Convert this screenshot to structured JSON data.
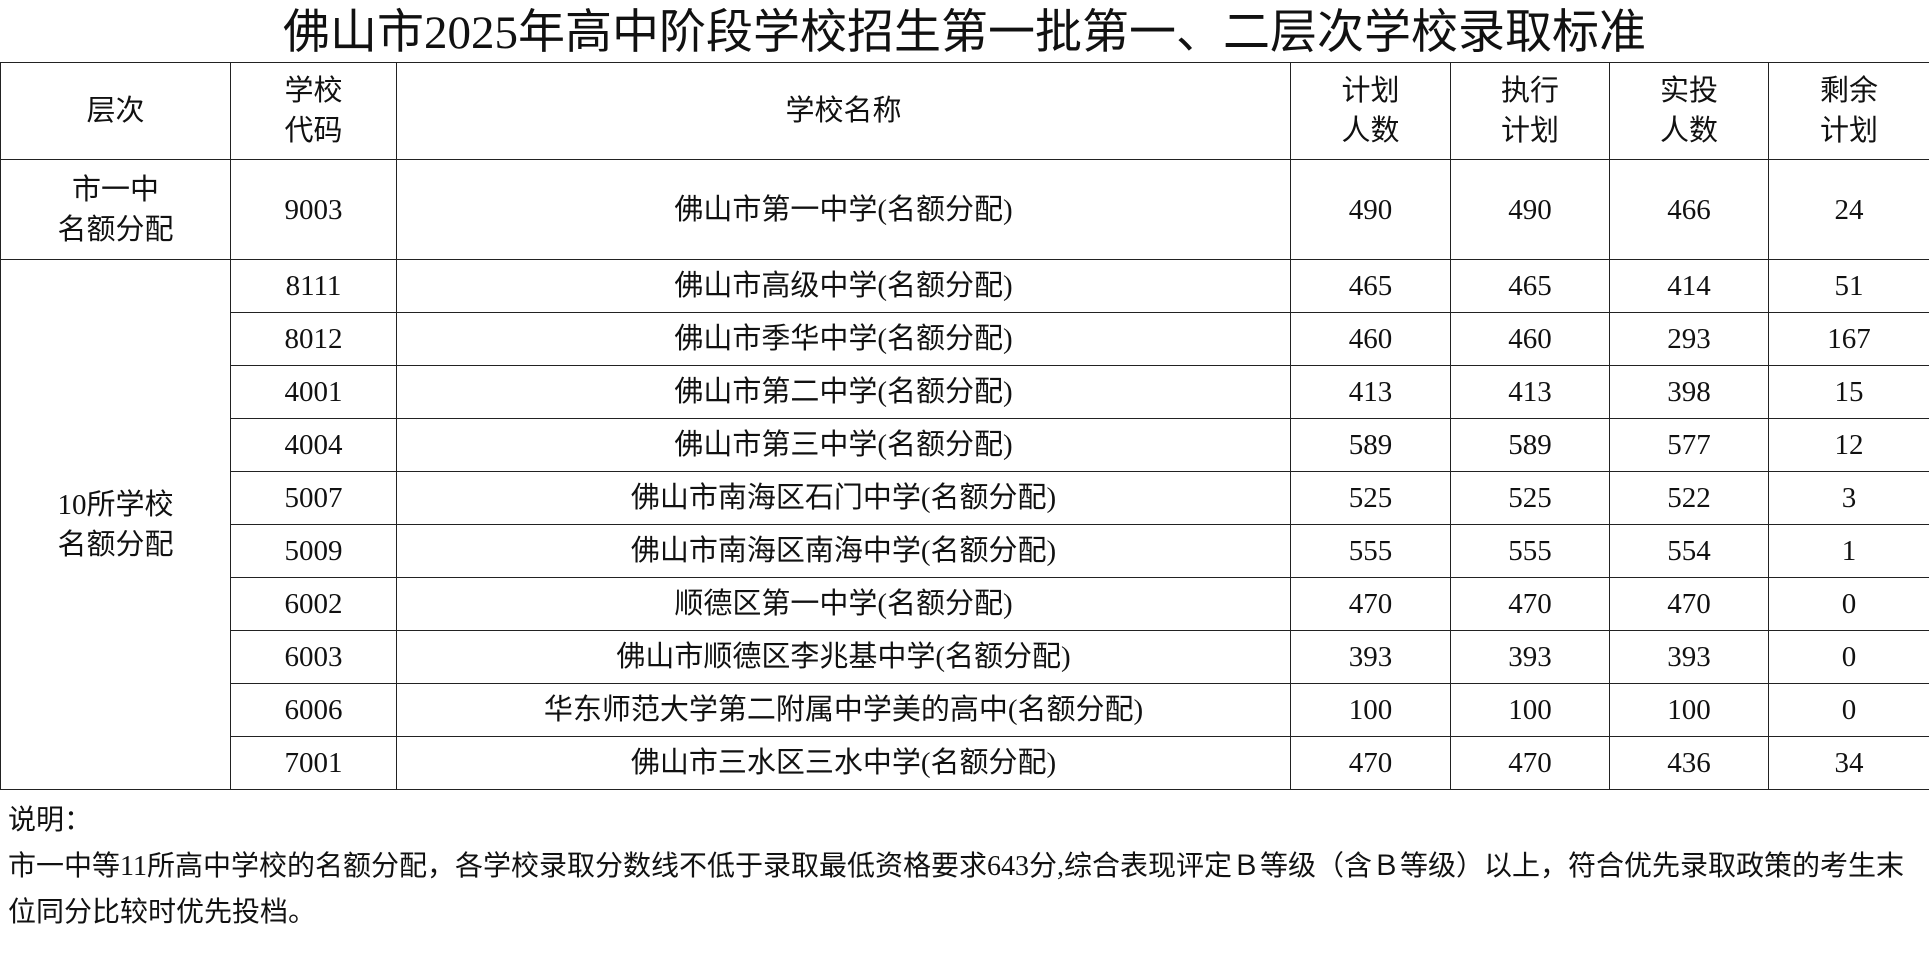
{
  "title": "佛山市2025年高中阶段学校招生第一批第一、二层次学校录取标准",
  "table": {
    "header": [
      [
        "层次"
      ],
      [
        "学校",
        "代码"
      ],
      [
        "学校名称"
      ],
      [
        "计划",
        "人数"
      ],
      [
        "执行",
        "计划"
      ],
      [
        "实投",
        "人数"
      ],
      [
        "剩余",
        "计划"
      ]
    ],
    "groups": [
      {
        "level": [
          "市一中",
          "名额分配"
        ],
        "rows": [
          [
            9003,
            "佛山市第一中学(名额分配)",
            490,
            490,
            466,
            24
          ]
        ]
      },
      {
        "level": [
          "10所学校",
          "名额分配"
        ],
        "rows": [
          [
            8111,
            "佛山市高级中学(名额分配)",
            465,
            465,
            414,
            51
          ],
          [
            8012,
            "佛山市季华中学(名额分配)",
            460,
            460,
            293,
            167
          ],
          [
            4001,
            "佛山市第二中学(名额分配)",
            413,
            413,
            398,
            15
          ],
          [
            4004,
            "佛山市第三中学(名额分配)",
            589,
            589,
            577,
            12
          ],
          [
            5007,
            "佛山市南海区石门中学(名额分配)",
            525,
            525,
            522,
            3
          ],
          [
            5009,
            "佛山市南海区南海中学(名额分配)",
            555,
            555,
            554,
            1
          ],
          [
            6002,
            "顺德区第一中学(名额分配)",
            470,
            470,
            470,
            0
          ],
          [
            6003,
            "佛山市顺德区李兆基中学(名额分配)",
            393,
            393,
            393,
            0
          ],
          [
            6006,
            "华东师范大学第二附属中学美的高中(名额分配)",
            100,
            100,
            100,
            0
          ],
          [
            7001,
            "佛山市三水区三水中学(名额分配)",
            470,
            470,
            436,
            34
          ]
        ]
      }
    ]
  },
  "note": {
    "label": "说明：",
    "text": "市一中等11所高中学校的名额分配，各学校录取分数线不低于录取最低资格要求643分,综合表现评定Ｂ等级（含Ｂ等级）以上，符合优先录取政策的考生末位同分比较时优先投档。"
  }
}
